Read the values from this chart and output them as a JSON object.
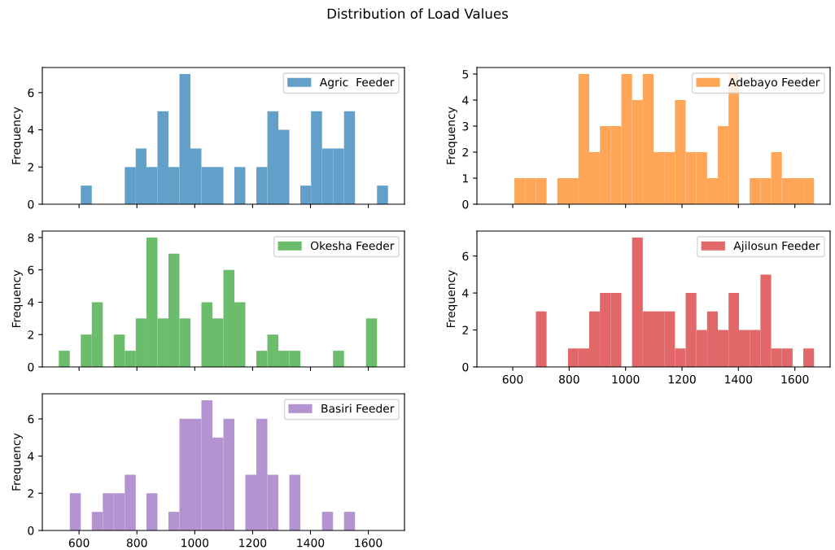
{
  "chart_data": [
    {
      "type": "histogram",
      "title": "Distribution of Load Values",
      "ylabel": "Frequency",
      "legend": "top right",
      "tick_labels": "y",
      "xlim": [
        473,
        1725
      ],
      "xticks": [
        {
          "value": 600,
          "label": null
        },
        {
          "value": 800,
          "label": null
        },
        {
          "value": 1000,
          "label": null
        },
        {
          "value": 1200,
          "label": null
        },
        {
          "value": 1400,
          "label": null
        },
        {
          "value": 1600,
          "label": null
        }
      ],
      "ylim": [
        0,
        7.35
      ],
      "yticks": [
        0,
        2,
        4,
        6
      ],
      "bins": [
        530,
        568,
        606,
        644,
        682,
        720,
        758,
        796,
        833,
        871,
        909,
        947,
        985,
        1023,
        1061,
        1099,
        1137,
        1175,
        1213,
        1251,
        1289,
        1327,
        1365,
        1402,
        1440,
        1478,
        1516,
        1554,
        1592,
        1630,
        1668
      ],
      "series": [
        {
          "name": "Agric  Feeder",
          "color": "#62a0ca",
          "values": [
            0,
            0,
            1,
            0,
            0,
            0,
            2,
            3,
            2,
            5,
            2,
            7,
            3,
            2,
            2,
            0,
            2,
            0,
            2,
            5,
            4,
            0,
            1,
            5,
            3,
            3,
            5,
            0,
            0,
            1
          ]
        }
      ]
    },
    {
      "type": "histogram",
      "ylabel": "Frequency",
      "legend": "top right",
      "tick_labels": "y",
      "xlim": [
        473,
        1725
      ],
      "xticks": [
        {
          "value": 600,
          "label": null
        },
        {
          "value": 800,
          "label": null
        },
        {
          "value": 1000,
          "label": null
        },
        {
          "value": 1200,
          "label": null
        },
        {
          "value": 1400,
          "label": null
        },
        {
          "value": 1600,
          "label": null
        }
      ],
      "ylim": [
        0,
        5.25
      ],
      "yticks": [
        0,
        1,
        2,
        3,
        4,
        5
      ],
      "bins": [
        530,
        568,
        606,
        644,
        682,
        720,
        758,
        796,
        833,
        871,
        909,
        947,
        985,
        1023,
        1061,
        1099,
        1137,
        1175,
        1213,
        1251,
        1289,
        1327,
        1365,
        1402,
        1440,
        1478,
        1516,
        1554,
        1592,
        1630,
        1668
      ],
      "series": [
        {
          "name": "Adebayo Feeder",
          "color": "#ffa556",
          "values": [
            0,
            0,
            1,
            1,
            1,
            0,
            1,
            1,
            5,
            2,
            3,
            3,
            5,
            4,
            5,
            2,
            2,
            4,
            2,
            2,
            1,
            3,
            5,
            0,
            1,
            1,
            2,
            1,
            1,
            1
          ]
        }
      ]
    },
    {
      "type": "histogram",
      "ylabel": "Frequency",
      "legend": "top right",
      "tick_labels": "y",
      "xlim": [
        473,
        1725
      ],
      "xticks": [
        {
          "value": 600,
          "label": null
        },
        {
          "value": 800,
          "label": null
        },
        {
          "value": 1000,
          "label": null
        },
        {
          "value": 1200,
          "label": null
        },
        {
          "value": 1400,
          "label": null
        },
        {
          "value": 1600,
          "label": null
        }
      ],
      "ylim": [
        0,
        8.4
      ],
      "yticks": [
        0,
        2,
        4,
        6,
        8
      ],
      "bins": [
        530,
        568,
        606,
        644,
        682,
        720,
        758,
        796,
        833,
        871,
        909,
        947,
        985,
        1023,
        1061,
        1099,
        1137,
        1175,
        1213,
        1251,
        1289,
        1327,
        1365,
        1402,
        1440,
        1478,
        1516,
        1554,
        1592,
        1630,
        1668
      ],
      "series": [
        {
          "name": "Okesha Feeder",
          "color": "#6bbc6b",
          "values": [
            1,
            0,
            2,
            4,
            0,
            2,
            1,
            3,
            8,
            3,
            7,
            3,
            0,
            4,
            3,
            6,
            4,
            0,
            1,
            2,
            1,
            1,
            0,
            0,
            0,
            1,
            0,
            0,
            3,
            0
          ]
        }
      ]
    },
    {
      "type": "histogram",
      "ylabel": "Frequency",
      "legend": "top right",
      "xlim": [
        473,
        1725
      ],
      "xticks": [
        600,
        800,
        1000,
        1200,
        1400,
        1600
      ],
      "ylim": [
        0,
        7.35
      ],
      "yticks": [
        0,
        2,
        4,
        6
      ],
      "bins": [
        530,
        568,
        606,
        644,
        682,
        720,
        758,
        796,
        833,
        871,
        909,
        947,
        985,
        1023,
        1061,
        1099,
        1137,
        1175,
        1213,
        1251,
        1289,
        1327,
        1365,
        1402,
        1440,
        1478,
        1516,
        1554,
        1592,
        1630,
        1668
      ],
      "series": [
        {
          "name": "Ajilosun Feeder",
          "color": "#e26768",
          "values": [
            0,
            0,
            0,
            0,
            3,
            0,
            0,
            1,
            1,
            3,
            4,
            4,
            0,
            7,
            3,
            3,
            3,
            1,
            4,
            2,
            3,
            2,
            4,
            2,
            2,
            5,
            1,
            1,
            0,
            1
          ]
        }
      ]
    },
    {
      "type": "histogram",
      "ylabel": "Frequency",
      "legend": "top right",
      "xlim": [
        473,
        1725
      ],
      "xticks": [
        600,
        800,
        1000,
        1200,
        1400,
        1600
      ],
      "ylim": [
        0,
        7.35
      ],
      "yticks": [
        0,
        2,
        4,
        6
      ],
      "bins": [
        530,
        568,
        606,
        644,
        682,
        720,
        758,
        796,
        833,
        871,
        909,
        947,
        985,
        1023,
        1061,
        1099,
        1137,
        1175,
        1213,
        1251,
        1289,
        1327,
        1365,
        1402,
        1440,
        1478,
        1516,
        1554,
        1592,
        1630,
        1668
      ],
      "series": [
        {
          "name": "Basiri Feeder",
          "color": "#b494d0",
          "values": [
            0,
            2,
            0,
            1,
            2,
            2,
            3,
            0,
            2,
            0,
            1,
            6,
            6,
            7,
            5,
            6,
            0,
            3,
            6,
            3,
            0,
            3,
            0,
            0,
            1,
            0,
            1,
            0,
            0,
            0
          ]
        }
      ]
    }
  ]
}
